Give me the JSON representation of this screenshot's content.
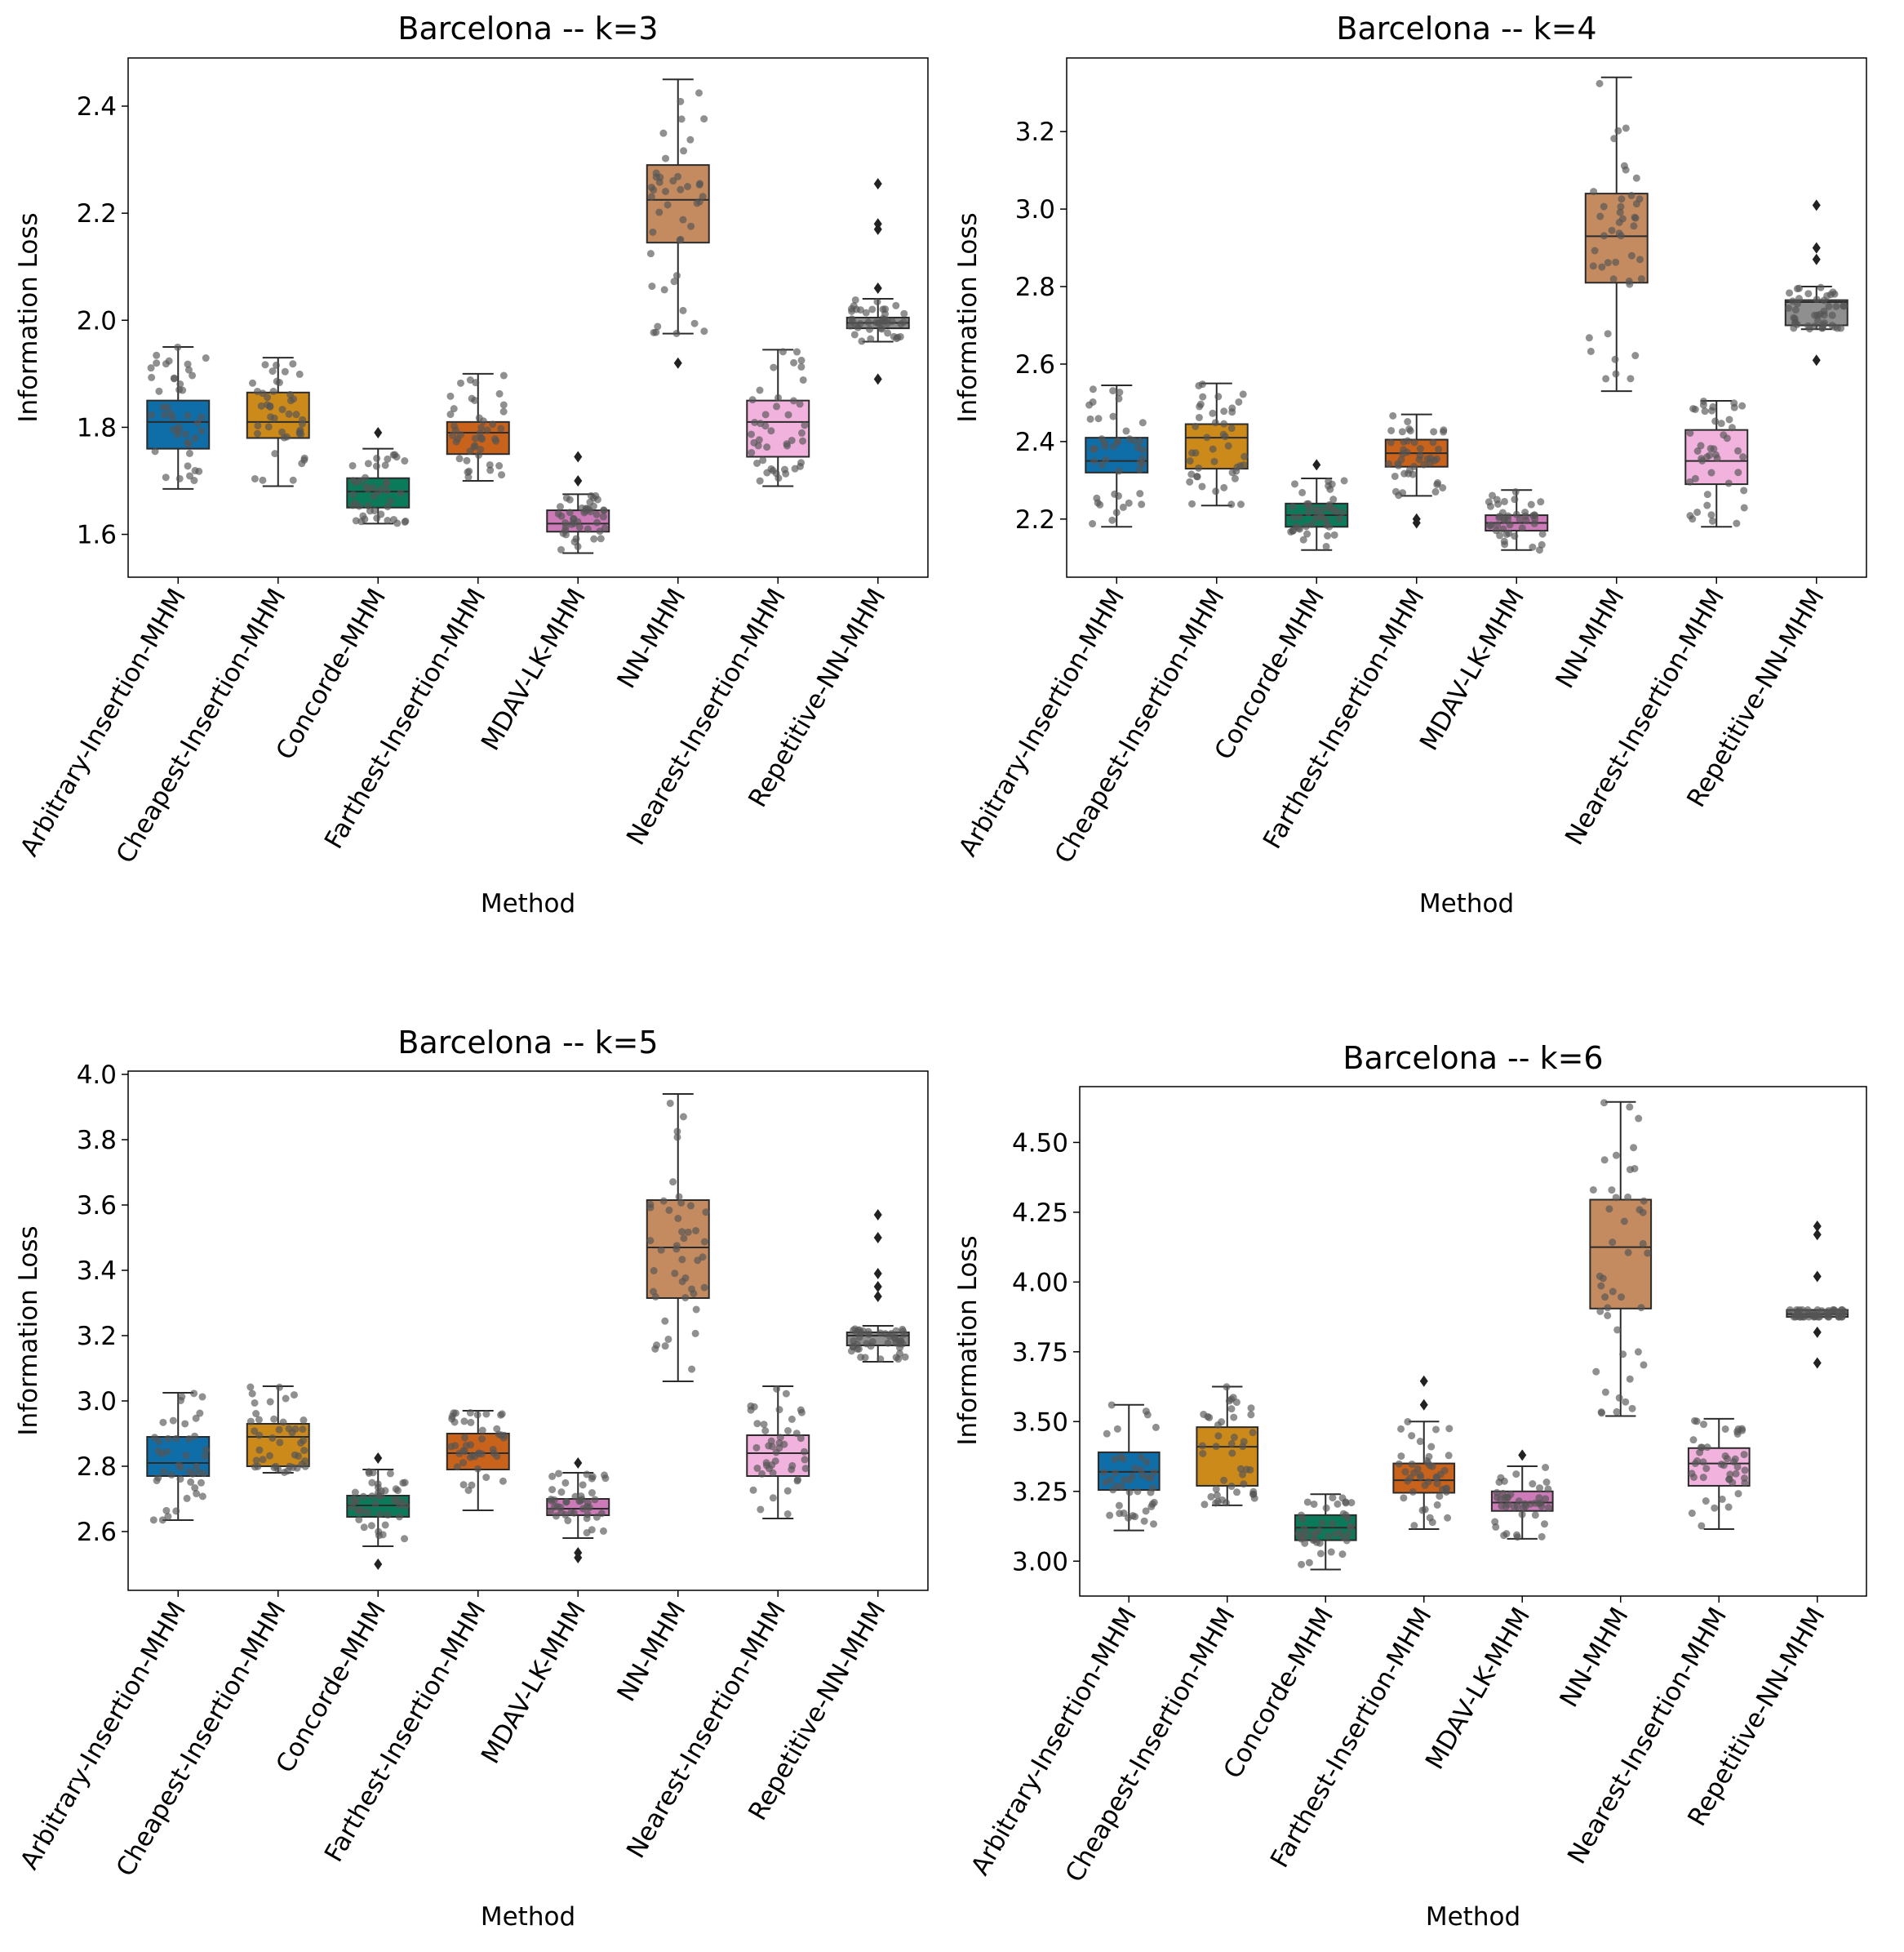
{
  "chart_data": [
    {
      "type": "boxplot",
      "title": "Barcelona -- k=3",
      "xlabel": "Method",
      "ylabel": "Information Loss",
      "ylim": [
        1.52,
        2.49
      ],
      "yticks": [
        1.6,
        1.8,
        2.0,
        2.2,
        2.4
      ],
      "ytick_labels": [
        "1.6",
        "1.8",
        "2.0",
        "2.2",
        "2.4"
      ],
      "categories": [
        "Arbitrary-Insertion-MHM",
        "Cheapest-Insertion-MHM",
        "Concorde-MHM",
        "Farthest-Insertion-MHM",
        "MDAV-LK-MHM",
        "NN-MHM",
        "Nearest-Insertion-MHM",
        "Repetitive-NN-MHM"
      ],
      "boxes": [
        {
          "q1": 1.76,
          "median": 1.81,
          "q3": 1.85,
          "whisker_low": 1.685,
          "whisker_high": 1.95,
          "outliers": []
        },
        {
          "q1": 1.78,
          "median": 1.81,
          "q3": 1.865,
          "whisker_low": 1.69,
          "whisker_high": 1.93,
          "outliers": []
        },
        {
          "q1": 1.65,
          "median": 1.68,
          "q3": 1.705,
          "whisker_low": 1.62,
          "whisker_high": 1.76,
          "outliers": [
            1.79
          ]
        },
        {
          "q1": 1.75,
          "median": 1.79,
          "q3": 1.81,
          "whisker_low": 1.7,
          "whisker_high": 1.9,
          "outliers": []
        },
        {
          "q1": 1.605,
          "median": 1.62,
          "q3": 1.645,
          "whisker_low": 1.565,
          "whisker_high": 1.675,
          "outliers": [
            1.7,
            1.745
          ]
        },
        {
          "q1": 2.145,
          "median": 2.225,
          "q3": 2.29,
          "whisker_low": 1.975,
          "whisker_high": 2.45,
          "outliers": [
            1.92
          ]
        },
        {
          "q1": 1.745,
          "median": 1.81,
          "q3": 1.85,
          "whisker_low": 1.69,
          "whisker_high": 1.945,
          "outliers": []
        },
        {
          "q1": 1.985,
          "median": 1.995,
          "q3": 2.005,
          "whisker_low": 1.96,
          "whisker_high": 2.04,
          "outliers": [
            1.89,
            2.06,
            2.17,
            2.18,
            2.255
          ]
        }
      ]
    },
    {
      "type": "boxplot",
      "title": "Barcelona -- k=4",
      "xlabel": "Method",
      "ylabel": "Information Loss",
      "ylim": [
        2.05,
        3.39
      ],
      "yticks": [
        2.2,
        2.4,
        2.6,
        2.8,
        3.0,
        3.2
      ],
      "ytick_labels": [
        "2.2",
        "2.4",
        "2.6",
        "2.8",
        "3.0",
        "3.2"
      ],
      "categories": [
        "Arbitrary-Insertion-MHM",
        "Cheapest-Insertion-MHM",
        "Concorde-MHM",
        "Farthest-Insertion-MHM",
        "MDAV-LK-MHM",
        "NN-MHM",
        "Nearest-Insertion-MHM",
        "Repetitive-NN-MHM"
      ],
      "boxes": [
        {
          "q1": 2.32,
          "median": 2.35,
          "q3": 2.41,
          "whisker_low": 2.18,
          "whisker_high": 2.545,
          "outliers": []
        },
        {
          "q1": 2.33,
          "median": 2.41,
          "q3": 2.445,
          "whisker_low": 2.235,
          "whisker_high": 2.55,
          "outliers": []
        },
        {
          "q1": 2.18,
          "median": 2.21,
          "q3": 2.24,
          "whisker_low": 2.12,
          "whisker_high": 2.305,
          "outliers": [
            2.34
          ]
        },
        {
          "q1": 2.335,
          "median": 2.37,
          "q3": 2.405,
          "whisker_low": 2.26,
          "whisker_high": 2.47,
          "outliers": [
            2.19,
            2.2
          ]
        },
        {
          "q1": 2.17,
          "median": 2.19,
          "q3": 2.21,
          "whisker_low": 2.12,
          "whisker_high": 2.275,
          "outliers": []
        },
        {
          "q1": 2.81,
          "median": 2.93,
          "q3": 3.04,
          "whisker_low": 2.53,
          "whisker_high": 3.34,
          "outliers": []
        },
        {
          "q1": 2.29,
          "median": 2.35,
          "q3": 2.43,
          "whisker_low": 2.18,
          "whisker_high": 2.505,
          "outliers": []
        },
        {
          "q1": 2.7,
          "median": 2.76,
          "q3": 2.765,
          "whisker_low": 2.69,
          "whisker_high": 2.8,
          "outliers": [
            2.61,
            2.87,
            2.9,
            3.01
          ]
        }
      ]
    },
    {
      "type": "boxplot",
      "title": "Barcelona -- k=5",
      "xlabel": "Method",
      "ylabel": "Information Loss",
      "ylim": [
        2.42,
        4.01
      ],
      "yticks": [
        2.6,
        2.8,
        3.0,
        3.2,
        3.4,
        3.6,
        3.8,
        4.0
      ],
      "ytick_labels": [
        "2.6",
        "2.8",
        "3.0",
        "3.2",
        "3.4",
        "3.6",
        "3.8",
        "4.0"
      ],
      "categories": [
        "Arbitrary-Insertion-MHM",
        "Cheapest-Insertion-MHM",
        "Concorde-MHM",
        "Farthest-Insertion-MHM",
        "MDAV-LK-MHM",
        "NN-MHM",
        "Nearest-Insertion-MHM",
        "Repetitive-NN-MHM"
      ],
      "boxes": [
        {
          "q1": 2.77,
          "median": 2.81,
          "q3": 2.89,
          "whisker_low": 2.635,
          "whisker_high": 3.025,
          "outliers": []
        },
        {
          "q1": 2.8,
          "median": 2.89,
          "q3": 2.93,
          "whisker_low": 2.78,
          "whisker_high": 3.045,
          "outliers": []
        },
        {
          "q1": 2.645,
          "median": 2.68,
          "q3": 2.71,
          "whisker_low": 2.555,
          "whisker_high": 2.79,
          "outliers": [
            2.5,
            2.825
          ]
        },
        {
          "q1": 2.79,
          "median": 2.84,
          "q3": 2.9,
          "whisker_low": 2.665,
          "whisker_high": 2.97,
          "outliers": []
        },
        {
          "q1": 2.65,
          "median": 2.67,
          "q3": 2.7,
          "whisker_low": 2.58,
          "whisker_high": 2.78,
          "outliers": [
            2.52,
            2.535,
            2.81
          ]
        },
        {
          "q1": 3.315,
          "median": 3.47,
          "q3": 3.615,
          "whisker_low": 3.06,
          "whisker_high": 3.94,
          "outliers": []
        },
        {
          "q1": 2.77,
          "median": 2.84,
          "q3": 2.895,
          "whisker_low": 2.64,
          "whisker_high": 3.045,
          "outliers": []
        },
        {
          "q1": 3.17,
          "median": 3.2,
          "q3": 3.21,
          "whisker_low": 3.12,
          "whisker_high": 3.23,
          "outliers": [
            3.32,
            3.35,
            3.39,
            3.5,
            3.57
          ]
        }
      ]
    },
    {
      "type": "boxplot",
      "title": "Barcelona -- k=6",
      "xlabel": "Method",
      "ylabel": "Information Loss",
      "ylim": [
        2.875,
        4.7
      ],
      "yticks": [
        3.0,
        3.25,
        3.5,
        3.75,
        4.0,
        4.25,
        4.5
      ],
      "ytick_labels": [
        "3.00",
        "3.25",
        "3.50",
        "3.75",
        "4.00",
        "4.25",
        "4.50"
      ],
      "categories": [
        "Arbitrary-Insertion-MHM",
        "Cheapest-Insertion-MHM",
        "Concorde-MHM",
        "Farthest-Insertion-MHM",
        "MDAV-LK-MHM",
        "NN-MHM",
        "Nearest-Insertion-MHM",
        "Repetitive-NN-MHM"
      ],
      "boxes": [
        {
          "q1": 3.255,
          "median": 3.32,
          "q3": 3.39,
          "whisker_low": 3.11,
          "whisker_high": 3.56,
          "outliers": []
        },
        {
          "q1": 3.27,
          "median": 3.41,
          "q3": 3.48,
          "whisker_low": 3.2,
          "whisker_high": 3.625,
          "outliers": []
        },
        {
          "q1": 3.075,
          "median": 3.12,
          "q3": 3.165,
          "whisker_low": 2.97,
          "whisker_high": 3.24,
          "outliers": []
        },
        {
          "q1": 3.245,
          "median": 3.29,
          "q3": 3.35,
          "whisker_low": 3.115,
          "whisker_high": 3.5,
          "outliers": [
            3.56,
            3.645
          ]
        },
        {
          "q1": 3.18,
          "median": 3.21,
          "q3": 3.25,
          "whisker_low": 3.08,
          "whisker_high": 3.34,
          "outliers": [
            3.38
          ]
        },
        {
          "q1": 3.905,
          "median": 4.125,
          "q3": 4.295,
          "whisker_low": 3.52,
          "whisker_high": 4.645,
          "outliers": []
        },
        {
          "q1": 3.27,
          "median": 3.35,
          "q3": 3.405,
          "whisker_low": 3.115,
          "whisker_high": 3.51,
          "outliers": []
        },
        {
          "q1": 3.875,
          "median": 3.885,
          "q3": 3.9,
          "whisker_low": 3.875,
          "whisker_high": 3.9,
          "outliers": [
            3.71,
            3.82,
            4.02,
            4.17,
            4.2
          ]
        }
      ]
    }
  ],
  "palette": {
    "box_colors": [
      "#0f6ea8",
      "#cc8a1b",
      "#0a7a5a",
      "#c9621b",
      "#cc7ab8",
      "#c48b60",
      "#f1b3dd",
      "#8f8f8f"
    ],
    "edge": "#2b2b2b",
    "swarm_point": "#555555"
  }
}
